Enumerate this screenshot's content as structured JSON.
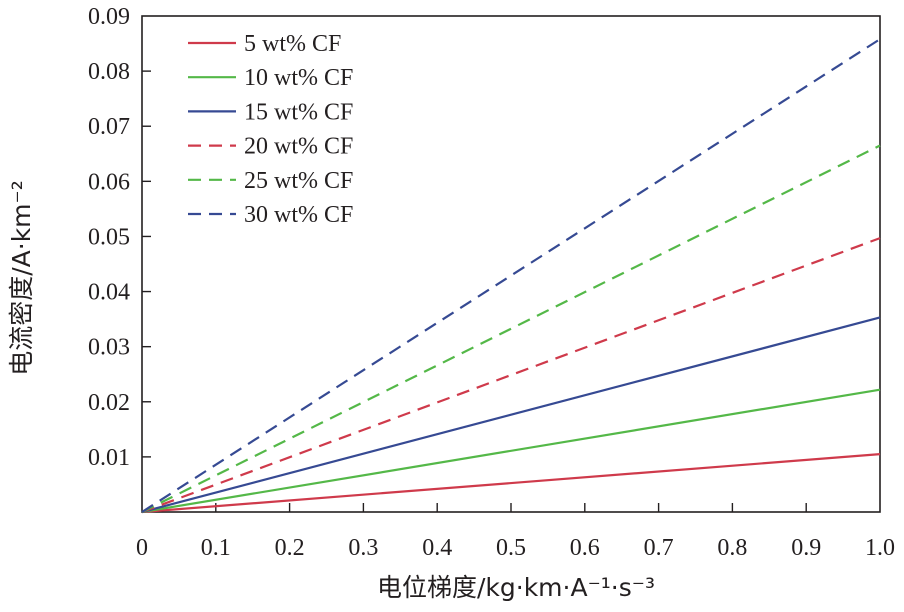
{
  "chart_data": {
    "type": "line",
    "title": "",
    "xlabel": "电位梯度/kg·km·A⁻¹·s⁻³",
    "ylabel": "电流密度/A·km⁻²",
    "xlim": [
      0,
      1.0
    ],
    "ylim": [
      0,
      0.09
    ],
    "x_ticks": [
      "0",
      "0.1",
      "0.2",
      "0.3",
      "0.4",
      "0.5",
      "0.6",
      "0.7",
      "0.8",
      "0.9",
      "1.0"
    ],
    "y_ticks": [
      "0.01",
      "0.02",
      "0.03",
      "0.04",
      "0.05",
      "0.06",
      "0.07",
      "0.08",
      "0.09"
    ],
    "grid": false,
    "legend_position": "top-left",
    "series": [
      {
        "name": "5 wt% CF",
        "x": [
          0,
          1.0
        ],
        "values": [
          0,
          0.0105
        ],
        "color": "#cf3a4b",
        "dash": "solid"
      },
      {
        "name": "10 wt% CF",
        "x": [
          0,
          1.0
        ],
        "values": [
          0,
          0.0222
        ],
        "color": "#54b848",
        "dash": "solid"
      },
      {
        "name": "15 wt% CF",
        "x": [
          0,
          1.0
        ],
        "values": [
          0,
          0.0353
        ],
        "color": "#364a93",
        "dash": "solid"
      },
      {
        "name": "20 wt% CF",
        "x": [
          0,
          1.0
        ],
        "values": [
          0,
          0.0497
        ],
        "color": "#cf3a4b",
        "dash": "dashed"
      },
      {
        "name": "25 wt% CF",
        "x": [
          0,
          1.0
        ],
        "values": [
          0,
          0.0665
        ],
        "color": "#54b848",
        "dash": "dashed"
      },
      {
        "name": "30 wt% CF",
        "x": [
          0,
          1.0
        ],
        "values": [
          0,
          0.0858
        ],
        "color": "#364a93",
        "dash": "dashed"
      }
    ]
  }
}
